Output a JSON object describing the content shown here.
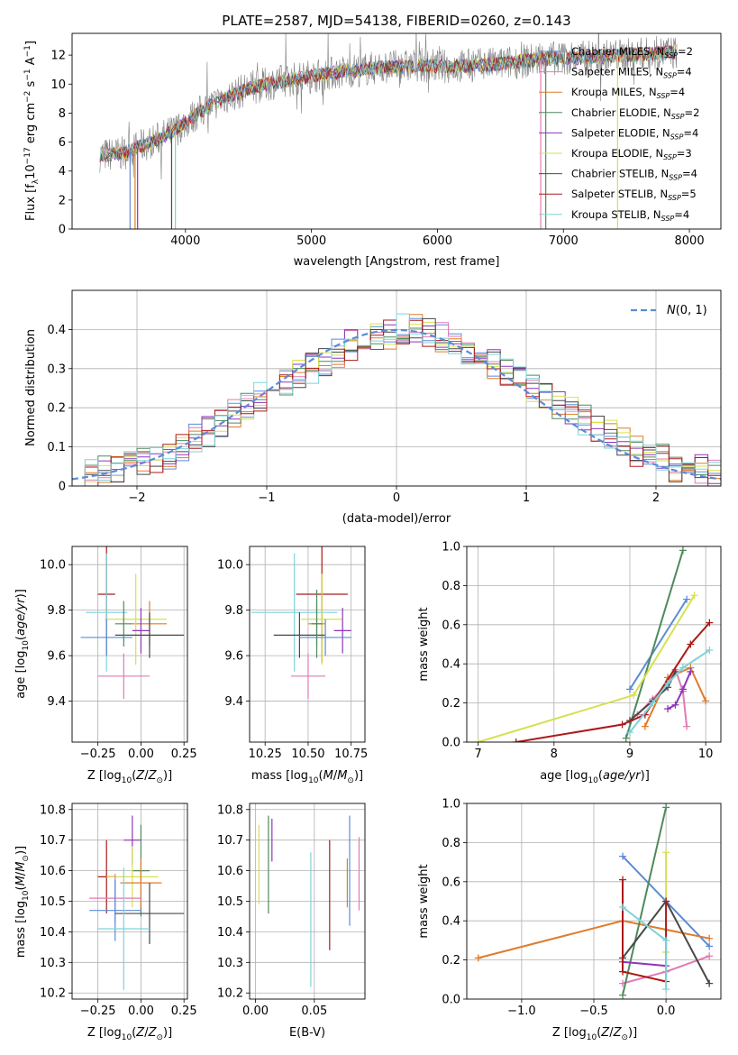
{
  "figure_title": "PLATE=2587, MJD=54138, FIBERID=0260, z=0.143",
  "colors": {
    "grid": "#b0b0b0",
    "spectrum": "#808080",
    "normal_curve": "#5b8bd6"
  },
  "chart_data": [
    {
      "id": "spectrum",
      "type": "line",
      "xlabel": "wavelength [Angstrom, rest frame]",
      "ylabel": "Flux [f_λ 10^-17 erg cm^-2 s^-1 A^-1]",
      "xlim": [
        3100,
        8250
      ],
      "ylim": [
        0,
        13.5
      ],
      "xticks": [
        4000,
        5000,
        6000,
        7000,
        8000
      ],
      "yticks": [
        0,
        2,
        4,
        6,
        8,
        10,
        12
      ],
      "grid": false,
      "legend_position": "top-right",
      "series": [
        {
          "name": "Chabrier MILES, N_SSP=2",
          "color": "#5b8bd6"
        },
        {
          "name": "Salpeter MILES, N_SSP=4",
          "color": "#e27ab4"
        },
        {
          "name": "Kroupa MILES, N_SSP=4",
          "color": "#e07b2a"
        },
        {
          "name": "Chabrier ELODIE, N_SSP=2",
          "color": "#4e8a5c"
        },
        {
          "name": "Salpeter ELODIE, N_SSP=4",
          "color": "#8e35b8"
        },
        {
          "name": "Kroupa ELODIE, N_SSP=3",
          "color": "#d6e050"
        },
        {
          "name": "Chabrier STELIB, N_SSP=4",
          "color": "#484848"
        },
        {
          "name": "Salpeter STELIB, N_SSP=5",
          "color": "#aa1a1a"
        },
        {
          "name": "Kroupa STELIB, N_SSP=4",
          "color": "#7fd3d8"
        }
      ],
      "continuum": {
        "x": [
          3320,
          3500,
          3700,
          3900,
          4100,
          4300,
          4500,
          4700,
          4900,
          5100,
          5300,
          5500,
          5700,
          5900,
          6100,
          6300,
          6500,
          6700,
          6900,
          7100,
          7300,
          7500,
          7700,
          7900
        ],
        "y": [
          5.1,
          5.2,
          5.9,
          6.7,
          8.0,
          9.0,
          9.7,
          10.1,
          10.4,
          10.7,
          10.9,
          11.1,
          11.2,
          11.3,
          11.2,
          11.3,
          11.4,
          11.6,
          11.8,
          11.8,
          11.9,
          12.0,
          12.1,
          12.2
        ]
      },
      "masked_drops_x": [
        3560,
        3600,
        3620,
        3890,
        3920,
        6820,
        6860,
        7430
      ]
    },
    {
      "id": "residuals",
      "type": "step-histogram",
      "xlabel": "(data-model)/error",
      "ylabel": "Normed distribution",
      "xlim": [
        -2.5,
        2.5
      ],
      "ylim": [
        0,
        0.5
      ],
      "xticks": [
        -2,
        -1,
        0,
        1,
        2
      ],
      "yticks": [
        0.0,
        0.1,
        0.2,
        0.3,
        0.4
      ],
      "grid": true,
      "legend_position": "top-right",
      "legend": "N(0,1)",
      "normal": {
        "mean": 0,
        "std": 1
      },
      "bins": [
        -2.5,
        -2.4,
        -2.3,
        -2.2,
        -2.1,
        -2.0,
        -1.9,
        -1.8,
        -1.7,
        -1.6,
        -1.5,
        -1.4,
        -1.3,
        -1.2,
        -1.1,
        -1.0,
        -0.9,
        -0.8,
        -0.7,
        -0.6,
        -0.5,
        -0.4,
        -0.3,
        -0.2,
        -0.1,
        0.0,
        0.1,
        0.2,
        0.3,
        0.4,
        0.5,
        0.6,
        0.7,
        0.8,
        0.9,
        1.0,
        1.1,
        1.2,
        1.3,
        1.4,
        1.5,
        1.6,
        1.7,
        1.8,
        1.9,
        2.0,
        2.1,
        2.2,
        2.3,
        2.4,
        2.5
      ],
      "base_density": [
        0.02,
        0.03,
        0.04,
        0.05,
        0.05,
        0.06,
        0.07,
        0.08,
        0.1,
        0.12,
        0.14,
        0.16,
        0.19,
        0.21,
        0.23,
        0.25,
        0.27,
        0.29,
        0.3,
        0.32,
        0.34,
        0.36,
        0.37,
        0.38,
        0.39,
        0.4,
        0.4,
        0.39,
        0.38,
        0.37,
        0.35,
        0.33,
        0.31,
        0.29,
        0.27,
        0.25,
        0.23,
        0.21,
        0.19,
        0.17,
        0.15,
        0.13,
        0.11,
        0.09,
        0.08,
        0.07,
        0.05,
        0.04,
        0.04,
        0.03
      ]
    },
    {
      "id": "age_vs_Z",
      "type": "errorbar",
      "xlabel": "Z [log10(Z/Z⊙)]",
      "ylabel": "age [log10(age/yr)]",
      "xlim": [
        -0.4,
        0.27
      ],
      "ylim": [
        9.22,
        10.08
      ],
      "xticks": [
        "-0.25",
        "0.00",
        "0.25"
      ],
      "yticks": [
        "9.4",
        "9.6",
        "9.8",
        "10.0"
      ],
      "grid": true
    },
    {
      "id": "age_vs_mass",
      "type": "errorbar",
      "xlabel": "mass [log10(M/M⊙)]",
      "xlim": [
        10.16,
        10.83
      ],
      "ylim": [
        9.22,
        10.08
      ],
      "xticks": [
        "10.25",
        "10.50",
        "10.75"
      ],
      "yticks": [
        "9.4",
        "9.6",
        "9.8",
        "10.0"
      ],
      "grid": true
    },
    {
      "id": "mass_weight_vs_age",
      "type": "line",
      "xlabel": "age [log10(age/yr)]",
      "ylabel": "mass weight",
      "xlim": [
        6.85,
        10.2
      ],
      "ylim": [
        0,
        1
      ],
      "xticks": [
        "7",
        "8",
        "9",
        "10"
      ],
      "yticks": [
        "0.0",
        "0.2",
        "0.4",
        "0.6",
        "0.8",
        "1.0"
      ],
      "grid": true,
      "series": [
        {
          "color": "#5b8bd6",
          "x": [
            9.0,
            9.75
          ],
          "y": [
            0.27,
            0.73
          ]
        },
        {
          "color": "#e27ab4",
          "x": [
            9.1,
            9.3,
            9.5,
            9.6,
            9.7,
            9.75
          ],
          "y": [
            0.14,
            0.22,
            0.3,
            0.37,
            0.26,
            0.08
          ]
        },
        {
          "color": "#e07b2a",
          "x": [
            9.2,
            9.5,
            9.8,
            10.0
          ],
          "y": [
            0.08,
            0.33,
            0.38,
            0.21
          ]
        },
        {
          "color": "#4e8a5c",
          "x": [
            8.95,
            9.7
          ],
          "y": [
            0.02,
            0.98
          ]
        },
        {
          "color": "#8e35b8",
          "x": [
            9.5,
            9.6,
            9.7,
            9.8
          ],
          "y": [
            0.17,
            0.19,
            0.27,
            0.36
          ]
        },
        {
          "color": "#d6e050",
          "x": [
            7.0,
            9.05,
            9.85
          ],
          "y": [
            0.0,
            0.24,
            0.75
          ]
        },
        {
          "color": "#484848",
          "x": [
            9.0,
            9.3,
            9.5,
            9.6
          ],
          "y": [
            0.11,
            0.21,
            0.28,
            0.36
          ]
        },
        {
          "color": "#aa1a1a",
          "x": [
            7.5,
            8.9,
            9.2,
            9.8,
            10.05
          ],
          "y": [
            0.0,
            0.09,
            0.14,
            0.5,
            0.61
          ]
        },
        {
          "color": "#7fd3d8",
          "x": [
            9.0,
            9.3,
            9.5,
            9.7,
            10.05
          ],
          "y": [
            0.05,
            0.2,
            0.3,
            0.38,
            0.47
          ]
        }
      ]
    },
    {
      "id": "mass_vs_Z",
      "type": "errorbar",
      "xlabel": "Z [log10(Z/Z⊙)]",
      "ylabel": "mass [log10(M/M⊙)]",
      "xlim": [
        -0.4,
        0.27
      ],
      "ylim": [
        10.18,
        10.82
      ],
      "xticks": [
        "-0.25",
        "0.00",
        "0.25"
      ],
      "yticks": [
        "10.2",
        "10.3",
        "10.4",
        "10.5",
        "10.6",
        "10.7",
        "10.8"
      ],
      "grid": true
    },
    {
      "id": "mass_vs_EBV",
      "type": "errorbar",
      "xlabel": "E(B-V)",
      "xlim": [
        -0.005,
        0.093
      ],
      "ylim": [
        10.18,
        10.82
      ],
      "xticks": [
        "0.00",
        "0.05"
      ],
      "yticks": [
        "10.2",
        "10.3",
        "10.4",
        "10.5",
        "10.6",
        "10.7",
        "10.8"
      ],
      "grid": true
    },
    {
      "id": "mass_weight_vs_Z",
      "type": "line",
      "xlabel": "Z [log10(Z/Z⊙)]",
      "ylabel": "mass weight",
      "xlim": [
        -1.38,
        0.38
      ],
      "ylim": [
        0,
        1
      ],
      "xticks": [
        "-1.0",
        "-0.5",
        "0.0"
      ],
      "yticks": [
        "0.0",
        "0.2",
        "0.4",
        "0.6",
        "0.8",
        "1.0"
      ],
      "grid": true,
      "series": [
        {
          "color": "#5b8bd6",
          "x": [
            -0.3,
            0.3
          ],
          "y": [
            0.73,
            0.27
          ]
        },
        {
          "color": "#e27ab4",
          "x": [
            -0.3,
            0.0,
            0.3
          ],
          "y": [
            0.08,
            0.14,
            0.22
          ]
        },
        {
          "color": "#e07b2a",
          "x": [
            -1.3,
            -0.3,
            0.3
          ],
          "y": [
            0.21,
            0.4,
            0.31
          ]
        },
        {
          "color": "#4e8a5c",
          "x": [
            -0.3,
            0.0
          ],
          "y": [
            0.02,
            0.98
          ]
        },
        {
          "color": "#8e35b8",
          "x": [
            -0.3,
            0.0
          ],
          "y": [
            0.19,
            0.17
          ]
        },
        {
          "color": "#d6e050",
          "x": [
            0.0,
            0.0
          ],
          "y": [
            0.24,
            0.75
          ]
        },
        {
          "color": "#484848",
          "x": [
            -0.3,
            0.0,
            0.3
          ],
          "y": [
            0.21,
            0.5,
            0.08
          ]
        },
        {
          "color": "#aa1a1a",
          "x": [
            -0.3,
            -0.3,
            0.0,
            0.0
          ],
          "y": [
            0.61,
            0.14,
            0.09,
            0.5
          ]
        },
        {
          "color": "#7fd3d8",
          "x": [
            -0.3,
            0.0,
            0.0
          ],
          "y": [
            0.47,
            0.3,
            0.05
          ]
        }
      ]
    }
  ],
  "errorbars": {
    "age_vs_Z": [
      {
        "color": "#aa1a1a",
        "x": -0.2,
        "xerr": 0.05,
        "y": 9.87,
        "yerr": 0.27
      },
      {
        "color": "#e07b2a",
        "x": 0.05,
        "xerr": 0.1,
        "y": 9.74,
        "yerr": 0.1
      },
      {
        "color": "#d6e050",
        "x": -0.03,
        "xerr": 0.18,
        "y": 9.76,
        "yerr": 0.2
      },
      {
        "color": "#7fd3d8",
        "x": -0.2,
        "xerr": 0.12,
        "y": 9.79,
        "yerr": 0.26
      },
      {
        "color": "#5b8bd6",
        "x": -0.2,
        "xerr": 0.15,
        "y": 9.68,
        "yerr": 0.08
      },
      {
        "color": "#e27ab4",
        "x": -0.1,
        "xerr": 0.15,
        "y": 9.51,
        "yerr": 0.1
      },
      {
        "color": "#8e35b8",
        "x": 0.0,
        "xerr": 0.05,
        "y": 9.71,
        "yerr": 0.1
      },
      {
        "color": "#484848",
        "x": 0.05,
        "xerr": 0.2,
        "y": 9.69,
        "yerr": 0.1
      },
      {
        "color": "#4e8a5c",
        "x": -0.1,
        "xerr": 0.05,
        "y": 9.74,
        "yerr": 0.1
      }
    ],
    "age_vs_mass": [
      {
        "color": "#aa1a1a",
        "x": 10.58,
        "xerr": 0.15,
        "y": 9.87,
        "yerr": 0.3
      },
      {
        "color": "#7fd3d8",
        "x": 10.42,
        "xerr": 0.25,
        "y": 9.79,
        "yerr": 0.26
      },
      {
        "color": "#d6e050",
        "x": 10.58,
        "xerr": 0.12,
        "y": 9.76,
        "yerr": 0.2
      },
      {
        "color": "#e07b2a",
        "x": 10.55,
        "xerr": 0.05,
        "y": 9.74,
        "yerr": 0.1
      },
      {
        "color": "#8e35b8",
        "x": 10.7,
        "xerr": 0.05,
        "y": 9.71,
        "yerr": 0.1
      },
      {
        "color": "#484848",
        "x": 10.45,
        "xerr": 0.15,
        "y": 9.69,
        "yerr": 0.1
      },
      {
        "color": "#5b8bd6",
        "x": 10.6,
        "xerr": 0.15,
        "y": 9.68,
        "yerr": 0.08
      },
      {
        "color": "#e27ab4",
        "x": 10.5,
        "xerr": 0.1,
        "y": 9.51,
        "yerr": 0.1
      },
      {
        "color": "#4e8a5c",
        "x": 10.55,
        "xerr": 0.03,
        "y": 9.74,
        "yerr": 0.15
      }
    ],
    "mass_vs_Z": [
      {
        "color": "#8e35b8",
        "x": -0.05,
        "xerr": 0.05,
        "y": 10.7,
        "yerr": 0.08
      },
      {
        "color": "#4e8a5c",
        "x": 0.0,
        "xerr": 0.05,
        "y": 10.6,
        "yerr": 0.15
      },
      {
        "color": "#aa1a1a",
        "x": -0.2,
        "xerr": 0.05,
        "y": 10.58,
        "yerr": 0.12
      },
      {
        "color": "#d6e050",
        "x": -0.05,
        "xerr": 0.15,
        "y": 10.58,
        "yerr": 0.1
      },
      {
        "color": "#e07b2a",
        "x": 0.0,
        "xerr": 0.12,
        "y": 10.56,
        "yerr": 0.08
      },
      {
        "color": "#e27ab4",
        "x": -0.15,
        "xerr": 0.15,
        "y": 10.51,
        "yerr": 0.08
      },
      {
        "color": "#5b8bd6",
        "x": -0.15,
        "xerr": 0.15,
        "y": 10.47,
        "yerr": 0.1
      },
      {
        "color": "#484848",
        "x": 0.05,
        "xerr": 0.2,
        "y": 10.46,
        "yerr": 0.1
      },
      {
        "color": "#7fd3d8",
        "x": -0.1,
        "xerr": 0.15,
        "y": 10.41,
        "yerr": 0.2
      }
    ],
    "mass_vs_EBV": [
      {
        "color": "#d6e050",
        "x": 0.003,
        "xerr": 0,
        "y": 10.62,
        "yerr": 0.13
      },
      {
        "color": "#4e8a5c",
        "x": 0.011,
        "xerr": 0,
        "y": 10.62,
        "yerr": 0.16
      },
      {
        "color": "#8e35b8",
        "x": 0.014,
        "xerr": 0,
        "y": 10.7,
        "yerr": 0.07
      },
      {
        "color": "#7fd3d8",
        "x": 0.047,
        "xerr": 0,
        "y": 10.44,
        "yerr": 0.22
      },
      {
        "color": "#aa1a1a",
        "x": 0.063,
        "xerr": 0,
        "y": 10.52,
        "yerr": 0.18
      },
      {
        "color": "#e07b2a",
        "x": 0.078,
        "xerr": 0,
        "y": 10.56,
        "yerr": 0.08
      },
      {
        "color": "#5b8bd6",
        "x": 0.08,
        "xerr": 0,
        "y": 10.6,
        "yerr": 0.18
      },
      {
        "color": "#e27ab4",
        "x": 0.088,
        "xerr": 0,
        "y": 10.59,
        "yerr": 0.12
      }
    ]
  }
}
